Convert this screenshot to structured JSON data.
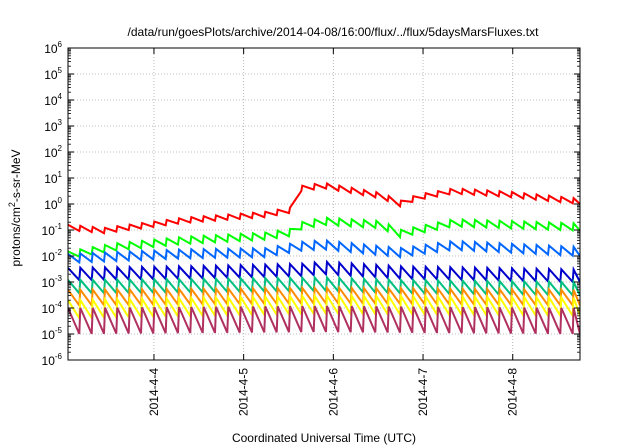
{
  "chart_data": {
    "type": "line",
    "title": "/data/run/goesPlots/archive/2014-04-08/16:00/flux/../flux/5daysMarsFluxes.txt",
    "xlabel": "Coordinated Universal Time (UTC)",
    "ylabel": "protons/cm2-s-sr-MeV",
    "y_scale": "log",
    "ylim_exponents": [
      -6,
      6
    ],
    "y_tick_labels": [
      {
        "base": "10",
        "exp": "6"
      },
      {
        "base": "10",
        "exp": "5"
      },
      {
        "base": "10",
        "exp": "4"
      },
      {
        "base": "10",
        "exp": "3"
      },
      {
        "base": "10",
        "exp": "2"
      },
      {
        "base": "10",
        "exp": "1"
      },
      {
        "base": "10",
        "exp": "0"
      },
      {
        "base": "10",
        "exp": "-1"
      },
      {
        "base": "10",
        "exp": "-2"
      },
      {
        "base": "10",
        "exp": "-3"
      },
      {
        "base": "10",
        "exp": "-4"
      },
      {
        "base": "10",
        "exp": "-5"
      },
      {
        "base": "10",
        "exp": "-6"
      }
    ],
    "x_tick_labels": [
      "2014-4-4",
      "2014-4-5",
      "2014-4-6",
      "2014-4-7",
      "2014-4-8"
    ],
    "x_range": [
      "2014-04-03 01:00",
      "2014-04-08 18:00"
    ],
    "grid": true,
    "series": [
      {
        "color": "#ff0000",
        "anchors": [
          [
            0,
            0.16
          ],
          [
            0.4,
            0.12
          ],
          [
            1.3,
            0.3
          ],
          [
            2.2,
            0.5
          ],
          [
            2.55,
            0.8
          ],
          [
            2.6,
            5.0
          ],
          [
            2.85,
            6.5
          ],
          [
            3.2,
            4.0
          ],
          [
            3.5,
            2.6
          ],
          [
            3.7,
            1.3
          ],
          [
            3.9,
            2.3
          ],
          [
            4.3,
            4.0
          ],
          [
            4.9,
            3.0
          ],
          [
            5.7,
            1.6
          ]
        ]
      },
      {
        "color": "#00ff00",
        "anchors": [
          [
            0,
            0.015
          ],
          [
            0.5,
            0.03
          ],
          [
            1.3,
            0.055
          ],
          [
            2.2,
            0.08
          ],
          [
            2.55,
            0.12
          ],
          [
            2.6,
            0.2
          ],
          [
            2.85,
            0.3
          ],
          [
            3.5,
            0.22
          ],
          [
            3.7,
            0.1
          ],
          [
            4.3,
            0.26
          ],
          [
            5.7,
            0.18
          ]
        ]
      },
      {
        "color": "#0066ff",
        "anchors": [
          [
            0,
            0.012
          ],
          [
            0.5,
            0.014
          ],
          [
            1.3,
            0.018
          ],
          [
            2.2,
            0.02
          ],
          [
            2.6,
            0.035
          ],
          [
            2.85,
            0.04
          ],
          [
            3.7,
            0.02
          ],
          [
            4.3,
            0.038
          ],
          [
            5.7,
            0.022
          ]
        ]
      },
      {
        "color": "#0000cc",
        "anchors": [
          [
            0,
            0.0035
          ],
          [
            1.3,
            0.004
          ],
          [
            2.6,
            0.005
          ],
          [
            2.85,
            0.006
          ],
          [
            3.7,
            0.004
          ],
          [
            5.7,
            0.003
          ]
        ]
      },
      {
        "color": "#00c080",
        "anchors": [
          [
            0,
            0.0012
          ],
          [
            1.3,
            0.0013
          ],
          [
            2.85,
            0.0015
          ],
          [
            3.7,
            0.0012
          ],
          [
            5.7,
            0.001
          ]
        ]
      },
      {
        "color": "#ff8c00",
        "anchors": [
          [
            0,
            0.0005
          ],
          [
            2.85,
            0.0006
          ],
          [
            5.7,
            0.0005
          ]
        ]
      },
      {
        "color": "#ffff00",
        "anchors": [
          [
            0,
            0.0002
          ],
          [
            2.85,
            0.0003
          ],
          [
            5.7,
            0.00025
          ]
        ]
      },
      {
        "color": "#b03060",
        "anchors": [
          [
            0,
            0.0001
          ],
          [
            2.85,
            0.00012
          ],
          [
            5.7,
            0.0001
          ]
        ]
      }
    ],
    "sawtooth": {
      "period_hours": 3.3,
      "series_drop_factors": [
        1.6,
        1.9,
        2.2,
        3.0,
        3.3,
        4.0,
        5.0,
        10.0
      ]
    }
  }
}
